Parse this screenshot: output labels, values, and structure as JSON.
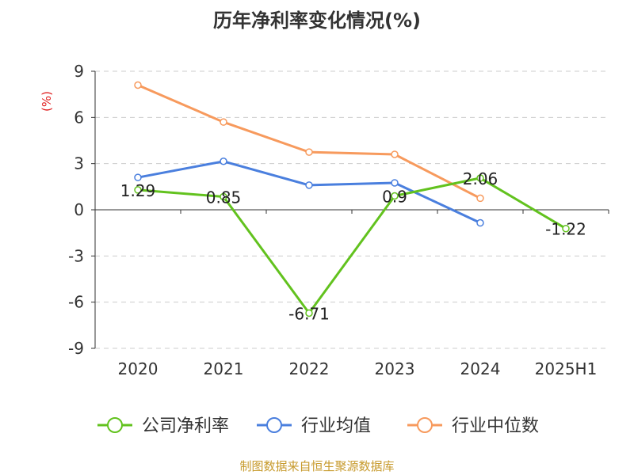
{
  "title": "历年净利率变化情况(%)",
  "source": "制图数据来自恒生聚源数据库",
  "chart_data": {
    "type": "line",
    "title": "历年净利率变化情况(%)",
    "ylabel": "(%)",
    "ylabel_color": "#e02020",
    "xlabel": "",
    "categories": [
      "2020",
      "2021",
      "2022",
      "2023",
      "2024",
      "2025H1"
    ],
    "y_ticks": [
      9,
      6,
      3,
      0,
      -3,
      -6,
      -9
    ],
    "ylim": [
      -9,
      9
    ],
    "grid": true,
    "legend_position": "bottom",
    "series": [
      {
        "name": "公司净利率",
        "color": "#62c21e",
        "values": [
          1.29,
          0.85,
          -6.71,
          0.9,
          2.06,
          -1.22
        ],
        "labels": [
          "1.29",
          "0.85",
          "-6.71",
          "0.9",
          "2.06",
          "-1.22"
        ],
        "show_labels": true
      },
      {
        "name": "行业均值",
        "color": "#4a7fde",
        "values": [
          2.1,
          3.15,
          1.6,
          1.75,
          -0.85,
          null
        ],
        "show_labels": false
      },
      {
        "name": "行业中位数",
        "color": "#f79a5d",
        "values": [
          8.1,
          5.7,
          3.75,
          3.6,
          0.75,
          null
        ],
        "show_labels": false
      }
    ]
  }
}
